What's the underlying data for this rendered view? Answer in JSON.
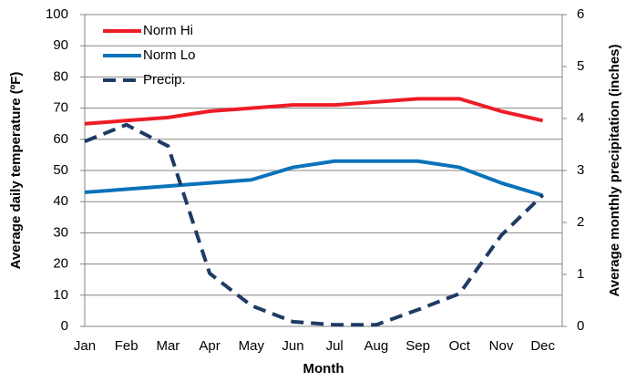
{
  "chart_data": {
    "type": "line",
    "categories": [
      "Jan",
      "Feb",
      "Mar",
      "Apr",
      "May",
      "Jun",
      "Jul",
      "Aug",
      "Sep",
      "Oct",
      "Nov",
      "Dec"
    ],
    "x_label": "Month",
    "y_label": "Average daily temperature (ºF)",
    "y2_label": "Average monthly precipitation (inches)",
    "ylim": [
      0,
      100
    ],
    "yticks": [
      0,
      10,
      20,
      30,
      40,
      50,
      60,
      70,
      80,
      90,
      100
    ],
    "y2lim": [
      0,
      6
    ],
    "y2ticks": [
      0,
      1,
      2,
      3,
      4,
      5,
      6
    ],
    "grid": true,
    "legend": "top-left",
    "series": [
      {
        "name": "Norm Hi",
        "color": "#ee1c25",
        "values": [
          65,
          66,
          67,
          69,
          70,
          71,
          71,
          72,
          73,
          73,
          69,
          66
        ]
      },
      {
        "name": "Norm Lo",
        "color": "#0a72ba",
        "values": [
          43,
          44,
          45,
          46,
          47,
          51,
          53,
          53,
          53,
          51,
          46,
          42
        ]
      },
      {
        "name": "Precip.",
        "color": "#1f3b63",
        "dashed": true,
        "axis": "y2",
        "values": [
          3.56,
          3.88,
          3.47,
          1.02,
          0.4,
          0.09,
          0.03,
          0.03,
          0.32,
          0.63,
          1.75,
          2.53
        ]
      }
    ]
  }
}
